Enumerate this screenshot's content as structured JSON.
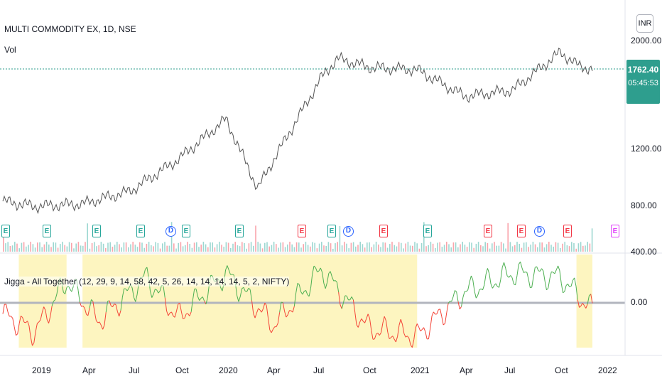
{
  "header": {
    "symbol_line": "MULTI COMMODITY EX, 1D, NSE",
    "volume_label": "Vol",
    "currency": "INR"
  },
  "price_tag": {
    "price": "1762.40",
    "countdown": "05:45:53",
    "color": "#2e9e8e"
  },
  "price_axis": [
    "2000.00",
    "1200.00",
    "800.00",
    "400.00"
  ],
  "indicator_axis": [
    "0.00"
  ],
  "indicator_label": "Jigga - All Together (12, 29, 9, 14, 58, 42, 5, 26, 14, 14, 14, 14, 5, 2, NIFTY)",
  "time_axis": [
    "2019",
    "Apr",
    "Jul",
    "Oct",
    "2020",
    "Apr",
    "Jul",
    "Oct",
    "2021",
    "Apr",
    "Jul",
    "Oct",
    "2022"
  ],
  "events": [
    {
      "type": "E",
      "color": "#26a69a"
    },
    {
      "type": "E",
      "color": "#26a69a"
    },
    {
      "type": "E",
      "color": "#26a69a"
    },
    {
      "type": "E",
      "color": "#26a69a"
    },
    {
      "type": "D",
      "color": "#2962ff"
    },
    {
      "type": "E",
      "color": "#26a69a"
    },
    {
      "type": "E",
      "color": "#26a69a"
    },
    {
      "type": "E",
      "color": "#f23645"
    },
    {
      "type": "E",
      "color": "#26a69a"
    },
    {
      "type": "D",
      "color": "#2962ff"
    },
    {
      "type": "E",
      "color": "#f23645"
    },
    {
      "type": "E",
      "color": "#26a69a"
    },
    {
      "type": "E",
      "color": "#f23645"
    },
    {
      "type": "E",
      "color": "#f23645"
    },
    {
      "type": "D",
      "color": "#2962ff"
    },
    {
      "type": "E",
      "color": "#f23645"
    },
    {
      "type": "E",
      "color": "#e040fb"
    }
  ],
  "chart_data": {
    "type": "line",
    "title": "MULTI COMMODITY EX, 1D, NSE",
    "series": [
      {
        "name": "MULTI COMMODITY EX",
        "x": [
          "2018-11",
          "2019-01",
          "2019-04",
          "2019-07",
          "2019-10",
          "2020-01",
          "2020-03",
          "2020-04",
          "2020-07",
          "2020-08",
          "2020-10",
          "2021-01",
          "2021-04",
          "2021-07",
          "2021-10",
          "2021-11",
          "2021-12"
        ],
        "values": [
          720,
          680,
          700,
          800,
          1050,
          1370,
          820,
          1050,
          1700,
          1850,
          1780,
          1760,
          1550,
          1600,
          1900,
          1800,
          1762
        ]
      },
      {
        "name": "Jigga - All Together",
        "x": [
          "2018-11",
          "2019-01",
          "2019-03",
          "2019-05",
          "2019-08",
          "2019-10",
          "2020-01",
          "2020-04",
          "2020-07",
          "2020-10",
          "2021-01",
          "2021-04",
          "2021-07",
          "2021-10",
          "2021-12"
        ],
        "values": [
          -0.3,
          -0.8,
          0.6,
          -0.5,
          0.7,
          -0.4,
          0.8,
          -0.6,
          0.9,
          -0.7,
          -0.9,
          0.3,
          0.8,
          0.7,
          -0.2
        ]
      }
    ],
    "ylim": [
      400,
      2200
    ],
    "grid": false
  }
}
